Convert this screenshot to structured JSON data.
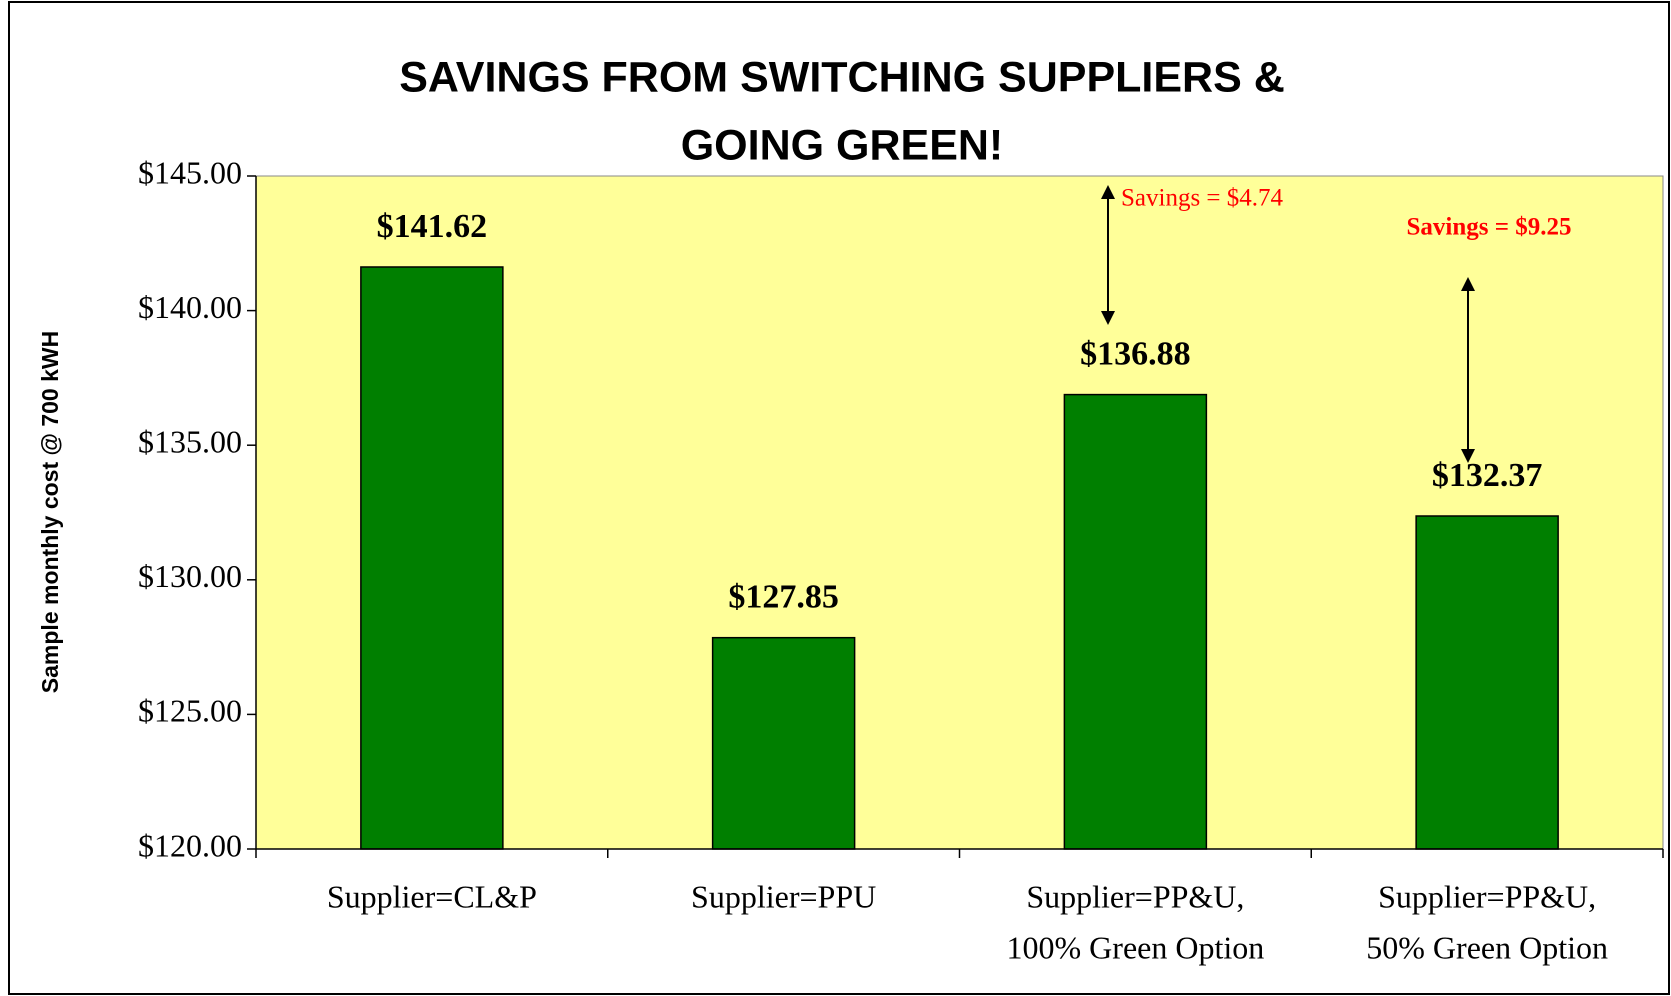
{
  "chart_data": {
    "type": "bar",
    "title": [
      "SAVINGS FROM SWITCHING SUPPLIERS &",
      "GOING GREEN!"
    ],
    "y_axis_label": "Sample monthly cost @ 700 kWH",
    "categories": [
      [
        "Supplier=CL&P"
      ],
      [
        "Supplier=PPU"
      ],
      [
        "Supplier=PP&U,",
        "100%  Green Option"
      ],
      [
        "Supplier=PP&U,",
        "50% Green Option"
      ]
    ],
    "values": [
      141.62,
      127.85,
      136.88,
      132.37
    ],
    "value_labels": [
      "$141.62",
      "$127.85",
      "$136.88",
      "$132.37"
    ],
    "color": "#007f00",
    "background": "#ffff99",
    "ylim": [
      120,
      145
    ],
    "yticks": [
      {
        "value": 120,
        "label": "$120.00"
      },
      {
        "value": 125,
        "label": "$125.00"
      },
      {
        "value": 130,
        "label": "$130.00"
      },
      {
        "value": 135,
        "label": "$135.00"
      },
      {
        "value": 140,
        "label": "$140.00"
      },
      {
        "value": 145,
        "label": "$145.00"
      }
    ],
    "grid": false,
    "annotations": [
      "Savings = $4.74",
      "Savings = $9.25"
    ]
  }
}
